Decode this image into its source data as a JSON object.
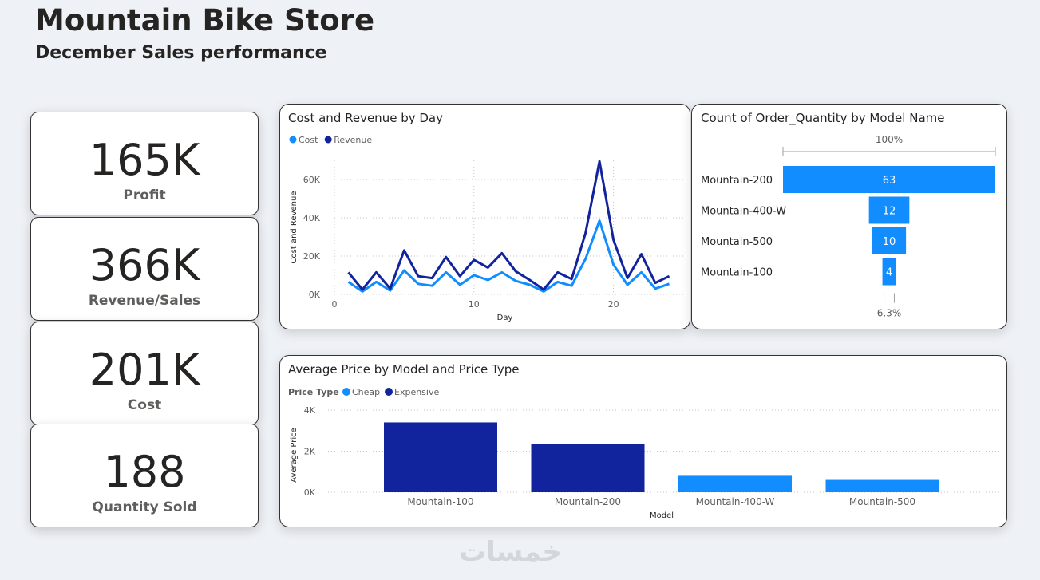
{
  "header": {
    "title": "Mountain Bike Store",
    "subtitle": "December Sales performance"
  },
  "kpis": [
    {
      "value": "165K",
      "label": "Profit"
    },
    {
      "value": "366K",
      "label": "Revenue/Sales"
    },
    {
      "value": "201K",
      "label": "Cost"
    },
    {
      "value": "188",
      "label": "Quantity Sold"
    }
  ],
  "colors": {
    "cost": "#118dff",
    "revenue": "#12239e",
    "cheap": "#118dff",
    "expensive": "#12239e",
    "funnel": "#118dff"
  },
  "watermark": "خمسات",
  "chart_data": [
    {
      "type": "line",
      "title": "Cost and Revenue by Day",
      "xlabel": "Day",
      "ylabel": "Cost and Revenue",
      "xlim": [
        0,
        25
      ],
      "ylim": [
        0,
        70000
      ],
      "x_ticks": [
        0,
        10,
        20
      ],
      "x_tick_labels": [
        "0",
        "10",
        "20"
      ],
      "y_ticks": [
        0,
        20000,
        40000,
        60000
      ],
      "y_tick_labels": [
        "0K",
        "20K",
        "40K",
        "60K"
      ],
      "grid": true,
      "legend": "top-left",
      "x": [
        1,
        2,
        3,
        4,
        5,
        6,
        7,
        8,
        9,
        10,
        11,
        12,
        13,
        14,
        15,
        16,
        17,
        18,
        19,
        20,
        21,
        22,
        23,
        24
      ],
      "series": [
        {
          "name": "Cost",
          "values": [
            6500,
            1500,
            6500,
            2000,
            12500,
            5500,
            4500,
            11500,
            5000,
            10000,
            7500,
            11500,
            7000,
            5000,
            1500,
            6500,
            4500,
            18500,
            38500,
            15500,
            5000,
            11500,
            3000,
            5500
          ]
        },
        {
          "name": "Revenue",
          "values": [
            11500,
            2500,
            11500,
            3000,
            23000,
            9500,
            8500,
            19500,
            9500,
            18000,
            14000,
            21500,
            12000,
            7500,
            2500,
            11500,
            8000,
            32000,
            69500,
            28500,
            8500,
            21000,
            6000,
            9500
          ]
        }
      ]
    },
    {
      "type": "funnel",
      "title": "Count of Order_Quantity by Model Name",
      "categories": [
        "Mountain-200",
        "Mountain-400-W",
        "Mountain-500",
        "Mountain-100"
      ],
      "values": [
        63,
        12,
        10,
        4
      ],
      "top_label": "100%",
      "bottom_label": "6.3%"
    },
    {
      "type": "bar",
      "title": "Average Price by Model and Price Type",
      "xlabel": "Model",
      "ylabel": "Average Price",
      "legend_title": "Price Type",
      "legend": "top-left",
      "ylim": [
        0,
        4000
      ],
      "y_ticks": [
        0,
        2000,
        4000
      ],
      "y_tick_labels": [
        "0K",
        "2K",
        "4K"
      ],
      "grid": true,
      "categories": [
        "Mountain-100",
        "Mountain-200",
        "Mountain-400-W",
        "Mountain-500"
      ],
      "series": [
        {
          "name": "Cheap",
          "values": [
            null,
            null,
            800,
            600
          ]
        },
        {
          "name": "Expensive",
          "values": [
            3400,
            2330,
            null,
            null
          ]
        }
      ]
    }
  ]
}
